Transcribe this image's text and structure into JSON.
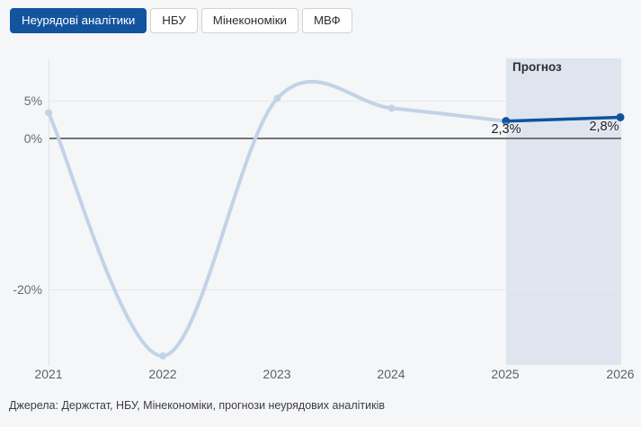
{
  "tabs": {
    "items": [
      {
        "label": "Неурядові аналітики",
        "active": true
      },
      {
        "label": "НБУ",
        "active": false
      },
      {
        "label": "Мінекономіки",
        "active": false
      },
      {
        "label": "МВФ",
        "active": false
      }
    ]
  },
  "colors": {
    "accent_blue": "#13549f",
    "forecast_line": "#0f529e",
    "historical_line": "#c2d3e8",
    "forecast_band": "#dee5ef",
    "zero_line": "#757575",
    "gridline": "#e7e8eb"
  },
  "chart_data": {
    "type": "line",
    "title": "",
    "xlabel": "",
    "ylabel": "",
    "x_ticks": [
      "2021",
      "2022",
      "2023",
      "2024",
      "2025",
      "2026"
    ],
    "y_ticks": [
      {
        "value": 5,
        "label": "5%"
      },
      {
        "value": 0,
        "label": "0%"
      },
      {
        "value": -20,
        "label": "-20%"
      }
    ],
    "ylim": [
      -32,
      10
    ],
    "xlim": [
      2021,
      2026
    ],
    "grid": "horizontal",
    "legend": "none",
    "series": [
      {
        "name": "historical",
        "color": "#c2d3e8",
        "x": [
          2021,
          2022,
          2023,
          2024,
          2025
        ],
        "values": [
          3.4,
          -28.8,
          5.3,
          4.0,
          2.3
        ],
        "dot_years": [
          2021,
          2022,
          2023,
          2024
        ]
      },
      {
        "name": "forecast",
        "color": "#0f529e",
        "x": [
          2025,
          2026
        ],
        "values": [
          2.3,
          2.8
        ],
        "dot_years": [
          2025,
          2026
        ]
      }
    ],
    "point_labels": [
      {
        "year": 2025,
        "value": 2.3,
        "label": "2,3%"
      },
      {
        "year": 2026,
        "value": 2.8,
        "label": "2,8%"
      }
    ],
    "forecast_band": {
      "label": "Прогноз",
      "from": 2025,
      "to": 2026
    }
  },
  "source_note": "Джерела: Держстат, НБУ, Мінекономіки, прогнози неурядових аналітиків"
}
